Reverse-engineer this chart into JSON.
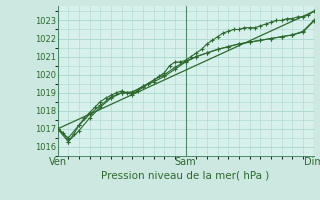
{
  "title": "Pression niveau de la mer( hPa )",
  "bg_color": "#cce8e0",
  "plot_bg_color": "#d8f0ec",
  "grid_color": "#a8d8cc",
  "line_color": "#2d6a2d",
  "tick_color": "#2d6a2d",
  "yticks": [
    1016,
    1017,
    1018,
    1019,
    1020,
    1021,
    1022,
    1023
  ],
  "ylim": [
    1015.5,
    1023.8
  ],
  "xlim": [
    0,
    48
  ],
  "xtick_positions": [
    0,
    24,
    48
  ],
  "xtick_labels": [
    "Ven",
    "Sam",
    "Dim"
  ],
  "minor_xticks": 24,
  "series1_x": [
    0,
    1,
    2,
    3,
    4,
    5,
    6,
    7,
    8,
    9,
    10,
    11,
    12,
    13,
    14,
    15,
    16,
    17,
    18,
    19,
    20,
    21,
    22,
    23,
    24,
    25,
    26,
    27,
    28,
    29,
    30,
    31,
    32,
    33,
    34,
    35,
    36,
    37,
    38,
    39,
    40,
    41,
    42,
    43,
    44,
    45,
    46,
    47,
    48
  ],
  "series1_y": [
    1017.0,
    1016.8,
    1016.3,
    1016.7,
    1017.2,
    1017.6,
    1017.9,
    1018.2,
    1018.5,
    1018.7,
    1018.85,
    1019.0,
    1019.1,
    1019.0,
    1018.9,
    1019.1,
    1019.3,
    1019.5,
    1019.7,
    1019.9,
    1020.1,
    1020.5,
    1020.7,
    1020.7,
    1020.8,
    1021.0,
    1021.2,
    1021.4,
    1021.7,
    1021.9,
    1022.1,
    1022.3,
    1022.4,
    1022.5,
    1022.5,
    1022.6,
    1022.6,
    1022.6,
    1022.7,
    1022.8,
    1022.9,
    1023.0,
    1023.0,
    1023.1,
    1023.1,
    1023.2,
    1023.2,
    1023.3,
    1023.5
  ],
  "series2_x": [
    0,
    2,
    4,
    6,
    8,
    10,
    12,
    14,
    16,
    18,
    20,
    22,
    24,
    26,
    28,
    30,
    32,
    34,
    36,
    38,
    40,
    42,
    44,
    46,
    48
  ],
  "series2_y": [
    1017.0,
    1016.5,
    1017.2,
    1017.8,
    1018.3,
    1018.75,
    1019.0,
    1019.05,
    1019.35,
    1019.6,
    1019.9,
    1020.3,
    1020.7,
    1021.0,
    1021.2,
    1021.4,
    1021.55,
    1021.7,
    1021.8,
    1021.9,
    1022.0,
    1022.1,
    1022.2,
    1022.4,
    1023.0
  ],
  "series3_x": [
    0,
    2,
    4,
    6,
    8,
    10,
    12,
    14,
    16,
    18,
    20,
    22,
    24,
    26,
    28,
    30,
    32,
    34,
    36,
    38,
    40,
    42,
    44,
    46,
    48
  ],
  "series3_y": [
    1017.0,
    1016.3,
    1016.9,
    1017.6,
    1018.2,
    1018.7,
    1019.0,
    1019.0,
    1019.35,
    1019.7,
    1020.0,
    1020.4,
    1020.75,
    1021.0,
    1021.2,
    1021.4,
    1021.55,
    1021.7,
    1021.8,
    1021.9,
    1022.0,
    1022.1,
    1022.2,
    1022.35,
    1022.95
  ],
  "trend_x": [
    0,
    48
  ],
  "trend_y": [
    1017.0,
    1023.5
  ]
}
